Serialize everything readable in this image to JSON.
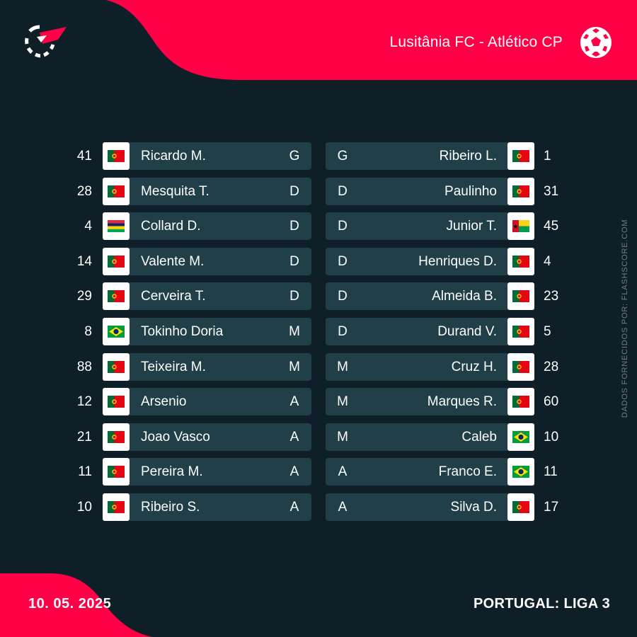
{
  "header": {
    "match_title": "Lusitânia FC - Atlético CP"
  },
  "colors": {
    "background": "#0f1f27",
    "accent": "#ff0046",
    "row_bar": "#203f48"
  },
  "icons": {
    "logo": "flashscore-logo-icon",
    "ball": "football-icon"
  },
  "home": {
    "players": [
      {
        "number": "41",
        "flag": "portugal-flag-icon",
        "name": "Ricardo M.",
        "position": "G"
      },
      {
        "number": "28",
        "flag": "portugal-flag-icon",
        "name": "Mesquita T.",
        "position": "D"
      },
      {
        "number": "4",
        "flag": "mauritius-flag-icon",
        "name": "Collard D.",
        "position": "D"
      },
      {
        "number": "14",
        "flag": "portugal-flag-icon",
        "name": "Valente M.",
        "position": "D"
      },
      {
        "number": "29",
        "flag": "portugal-flag-icon",
        "name": "Cerveira T.",
        "position": "D"
      },
      {
        "number": "8",
        "flag": "brazil-flag-icon",
        "name": "Tokinho Doria",
        "position": "M"
      },
      {
        "number": "88",
        "flag": "portugal-flag-icon",
        "name": "Teixeira M.",
        "position": "M"
      },
      {
        "number": "12",
        "flag": "portugal-flag-icon",
        "name": "Arsenio",
        "position": "A"
      },
      {
        "number": "21",
        "flag": "portugal-flag-icon",
        "name": "Joao Vasco",
        "position": "A"
      },
      {
        "number": "11",
        "flag": "portugal-flag-icon",
        "name": "Pereira M.",
        "position": "A"
      },
      {
        "number": "10",
        "flag": "portugal-flag-icon",
        "name": "Ribeiro S.",
        "position": "A"
      }
    ]
  },
  "away": {
    "players": [
      {
        "number": "1",
        "flag": "portugal-flag-icon",
        "name": "Ribeiro L.",
        "position": "G"
      },
      {
        "number": "31",
        "flag": "portugal-flag-icon",
        "name": "Paulinho",
        "position": "D"
      },
      {
        "number": "45",
        "flag": "guinea-bissau-flag-icon",
        "name": "Junior T.",
        "position": "D"
      },
      {
        "number": "4",
        "flag": "portugal-flag-icon",
        "name": "Henriques D.",
        "position": "D"
      },
      {
        "number": "23",
        "flag": "portugal-flag-icon",
        "name": "Almeida B.",
        "position": "D"
      },
      {
        "number": "5",
        "flag": "portugal-flag-icon",
        "name": "Durand V.",
        "position": "D"
      },
      {
        "number": "28",
        "flag": "portugal-flag-icon",
        "name": "Cruz H.",
        "position": "M"
      },
      {
        "number": "60",
        "flag": "portugal-flag-icon",
        "name": "Marques R.",
        "position": "M"
      },
      {
        "number": "10",
        "flag": "brazil-flag-icon",
        "name": "Caleb",
        "position": "M"
      },
      {
        "number": "11",
        "flag": "brazil-flag-icon",
        "name": "Franco E.",
        "position": "A"
      },
      {
        "number": "17",
        "flag": "portugal-flag-icon",
        "name": "Silva D.",
        "position": "A"
      }
    ]
  },
  "footer": {
    "date": "10. 05. 2025",
    "league": "PORTUGAL: LIGA 3",
    "credit": "DADOS FORNECIDOS POR: FLASHSCORE.COM"
  }
}
